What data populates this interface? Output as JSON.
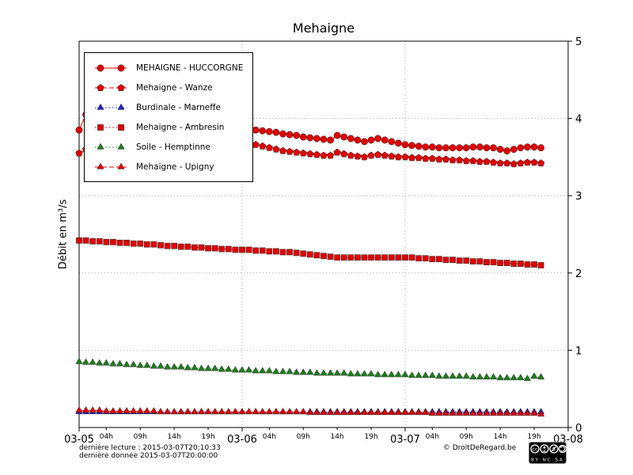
{
  "title": "Mehaigne",
  "ylabel": "Débit en m³/s",
  "footer": {
    "last_read": "dernière lecture : 2015-03-07T20:10:33",
    "last_data": "dernière donnée  2015-03-07T20:00:00",
    "copyright": "© DroitDeRegard.be",
    "license": "BY NC SA"
  },
  "chart_data": {
    "type": "line",
    "title": "Mehaigne",
    "xlabel": "",
    "ylabel": "Débit en m³/s",
    "xlim_hours": [
      0,
      72
    ],
    "ylim": [
      0,
      5
    ],
    "yticks": [
      0,
      1,
      2,
      3,
      4,
      5
    ],
    "grid": true,
    "legend_position": "upper left",
    "x_major_ticks": [
      {
        "t": 0,
        "label": "03-05"
      },
      {
        "t": 24,
        "label": "03-06"
      },
      {
        "t": 48,
        "label": "03-07"
      },
      {
        "t": 72,
        "label": "03-08"
      }
    ],
    "x_minor_ticks": [
      {
        "t": 4,
        "label": "04h"
      },
      {
        "t": 9,
        "label": "09h"
      },
      {
        "t": 14,
        "label": "14h"
      },
      {
        "t": 19,
        "label": "19h"
      },
      {
        "t": 28,
        "label": "04h"
      },
      {
        "t": 33,
        "label": "09h"
      },
      {
        "t": 38,
        "label": "14h"
      },
      {
        "t": 43,
        "label": "19h"
      },
      {
        "t": 52,
        "label": "04h"
      },
      {
        "t": 57,
        "label": "09h"
      },
      {
        "t": 62,
        "label": "14h"
      },
      {
        "t": 67,
        "label": "19h"
      }
    ],
    "series": [
      {
        "name": "MEHAIGNE - HUCCORGNE",
        "color": "#e00000",
        "marker": "circle",
        "line": "solid",
        "start_hour": 0,
        "step_hours": 1,
        "values": [
          3.85,
          4.05,
          4.2,
          4.1,
          4.02,
          3.98,
          3.96,
          3.94,
          3.92,
          3.9,
          3.88,
          3.87,
          3.86,
          3.85,
          3.84,
          3.83,
          3.82,
          3.81,
          3.8,
          3.79,
          3.78,
          3.77,
          3.76,
          3.9,
          3.88,
          3.86,
          3.85,
          3.84,
          3.83,
          3.82,
          3.8,
          3.79,
          3.78,
          3.76,
          3.75,
          3.74,
          3.73,
          3.72,
          3.78,
          3.76,
          3.74,
          3.72,
          3.7,
          3.72,
          3.74,
          3.72,
          3.7,
          3.68,
          3.66,
          3.65,
          3.64,
          3.63,
          3.63,
          3.62,
          3.62,
          3.62,
          3.62,
          3.62,
          3.63,
          3.63,
          3.62,
          3.62,
          3.6,
          3.58,
          3.6,
          3.62,
          3.63,
          3.63,
          3.62
        ]
      },
      {
        "name": "Mehaigne - Wanze",
        "color": "#e00000",
        "marker": "pentagon",
        "line": "dashed",
        "start_hour": 0,
        "step_hours": 1,
        "values": [
          3.55,
          3.6,
          3.65,
          3.62,
          3.6,
          3.58,
          3.57,
          3.56,
          3.55,
          3.54,
          3.53,
          3.52,
          3.51,
          3.5,
          3.5,
          3.49,
          3.49,
          3.48,
          3.48,
          3.47,
          3.47,
          3.46,
          3.46,
          3.72,
          3.7,
          3.68,
          3.66,
          3.64,
          3.62,
          3.6,
          3.58,
          3.57,
          3.56,
          3.55,
          3.54,
          3.53,
          3.52,
          3.52,
          3.56,
          3.54,
          3.52,
          3.51,
          3.5,
          3.52,
          3.53,
          3.52,
          3.51,
          3.5,
          3.5,
          3.49,
          3.49,
          3.48,
          3.48,
          3.47,
          3.47,
          3.46,
          3.46,
          3.45,
          3.45,
          3.44,
          3.44,
          3.43,
          3.42,
          3.42,
          3.41,
          3.42,
          3.43,
          3.43,
          3.42
        ]
      },
      {
        "name": "Burdinale - Marneffe",
        "color": "#2222cc",
        "marker": "triangle",
        "line": "dotted",
        "start_hour": 0,
        "step_hours": 1,
        "values": [
          0.2,
          0.2,
          0.2,
          0.2,
          0.2,
          0.2,
          0.2,
          0.2,
          0.2,
          0.2,
          0.2,
          0.2,
          0.2,
          0.2,
          0.2,
          0.2,
          0.2,
          0.2,
          0.2,
          0.2,
          0.2,
          0.2,
          0.2,
          0.2,
          0.2,
          0.2,
          0.2,
          0.2,
          0.2,
          0.2,
          0.2,
          0.2,
          0.2,
          0.2,
          0.2,
          0.2,
          0.2,
          0.2,
          0.2,
          0.2,
          0.2,
          0.2,
          0.2,
          0.2,
          0.2,
          0.2,
          0.2,
          0.2,
          0.2,
          0.2,
          0.2,
          0.2,
          0.2,
          0.2,
          0.2,
          0.2,
          0.2,
          0.2,
          0.2,
          0.2,
          0.2,
          0.2,
          0.2,
          0.2,
          0.2,
          0.2,
          0.2,
          0.2,
          0.2
        ]
      },
      {
        "name": "Mehaigne - Ambresin",
        "color": "#e00000",
        "marker": "square",
        "line": "dotted",
        "start_hour": 0,
        "step_hours": 1,
        "values": [
          2.42,
          2.42,
          2.41,
          2.41,
          2.4,
          2.4,
          2.39,
          2.39,
          2.38,
          2.38,
          2.37,
          2.37,
          2.36,
          2.35,
          2.35,
          2.34,
          2.34,
          2.33,
          2.33,
          2.32,
          2.32,
          2.31,
          2.31,
          2.3,
          2.3,
          2.3,
          2.29,
          2.29,
          2.28,
          2.28,
          2.27,
          2.27,
          2.26,
          2.25,
          2.24,
          2.23,
          2.22,
          2.21,
          2.2,
          2.2,
          2.2,
          2.2,
          2.2,
          2.2,
          2.2,
          2.2,
          2.2,
          2.2,
          2.2,
          2.2,
          2.19,
          2.19,
          2.18,
          2.18,
          2.17,
          2.17,
          2.16,
          2.16,
          2.15,
          2.15,
          2.14,
          2.14,
          2.13,
          2.13,
          2.12,
          2.12,
          2.11,
          2.11,
          2.1
        ]
      },
      {
        "name": "Soile - Hemptinne",
        "color": "#1e7d1e",
        "marker": "triangle",
        "line": "dotted",
        "start_hour": 0,
        "step_hours": 1,
        "values": [
          0.85,
          0.84,
          0.84,
          0.83,
          0.83,
          0.82,
          0.82,
          0.81,
          0.81,
          0.8,
          0.8,
          0.79,
          0.79,
          0.78,
          0.78,
          0.78,
          0.77,
          0.77,
          0.76,
          0.76,
          0.76,
          0.75,
          0.75,
          0.74,
          0.74,
          0.74,
          0.73,
          0.73,
          0.73,
          0.72,
          0.72,
          0.72,
          0.71,
          0.71,
          0.71,
          0.7,
          0.7,
          0.7,
          0.7,
          0.7,
          0.69,
          0.69,
          0.69,
          0.69,
          0.68,
          0.68,
          0.68,
          0.68,
          0.68,
          0.67,
          0.67,
          0.67,
          0.67,
          0.66,
          0.66,
          0.66,
          0.66,
          0.66,
          0.65,
          0.65,
          0.65,
          0.65,
          0.64,
          0.64,
          0.64,
          0.64,
          0.63,
          0.66,
          0.65
        ]
      },
      {
        "name": "Mehaigne - Upigny",
        "color": "#e00000",
        "marker": "triangle",
        "line": "dashed",
        "start_hour": 0,
        "step_hours": 1,
        "values": [
          0.22,
          0.22,
          0.22,
          0.22,
          0.21,
          0.21,
          0.21,
          0.21,
          0.21,
          0.21,
          0.21,
          0.21,
          0.2,
          0.2,
          0.2,
          0.2,
          0.2,
          0.2,
          0.2,
          0.2,
          0.2,
          0.2,
          0.2,
          0.2,
          0.2,
          0.2,
          0.2,
          0.2,
          0.2,
          0.2,
          0.2,
          0.2,
          0.2,
          0.2,
          0.19,
          0.19,
          0.19,
          0.19,
          0.19,
          0.19,
          0.19,
          0.19,
          0.19,
          0.19,
          0.19,
          0.19,
          0.19,
          0.19,
          0.19,
          0.19,
          0.19,
          0.19,
          0.18,
          0.18,
          0.18,
          0.18,
          0.18,
          0.18,
          0.18,
          0.18,
          0.18,
          0.18,
          0.18,
          0.18,
          0.18,
          0.18,
          0.18,
          0.18,
          0.17
        ]
      }
    ]
  }
}
